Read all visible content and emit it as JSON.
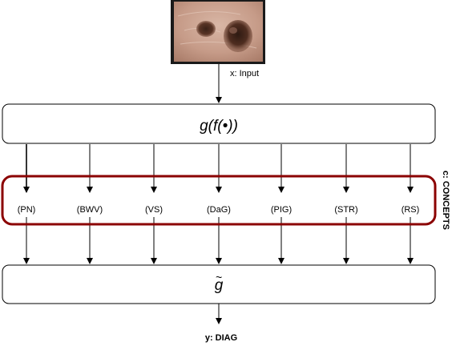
{
  "input_label": "x: Input",
  "encoder_label": "g(f(•))",
  "concepts_label": "c: CONCEPTS",
  "concepts": [
    "(PN)",
    "(BWV)",
    "(VS)",
    "(DaG)",
    "(PIG)",
    "(STR)",
    "(RS)"
  ],
  "decoder_label": "g",
  "decoder_tilde": "~",
  "output_label": "y: DIAG",
  "colors": {
    "concept_border": "#8B0000",
    "stroke": "#000000"
  },
  "input_image": "skin-lesion-photo"
}
